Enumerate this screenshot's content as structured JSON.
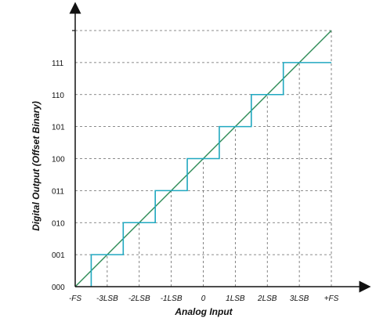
{
  "chart_data": {
    "type": "line",
    "title": "",
    "xlabel": "Analog Input",
    "ylabel": "Digital Output (Offset Binary)",
    "x_ticks": [
      "-FS",
      "-3LSB",
      "-2LSB",
      "-1LSB",
      "0",
      "1LSB",
      "2LSB",
      "3LSB",
      "+FS"
    ],
    "y_ticks": [
      "000",
      "001",
      "010",
      "011",
      "100",
      "101",
      "110",
      "111"
    ],
    "xlim": [
      -4,
      4
    ],
    "ylim": [
      0,
      8
    ],
    "grid": "dashed",
    "colors": {
      "ideal": "#2e8b57",
      "staircase": "#20a8c0",
      "axis": "#111111",
      "grid": "#666666"
    },
    "series": [
      {
        "type": "line",
        "x": [
          -4,
          4
        ],
        "y": [
          0,
          8
        ]
      },
      {
        "type": "step",
        "x": [
          -3.5,
          -3.5,
          -2.5,
          -2.5,
          -1.5,
          -1.5,
          -0.5,
          -0.5,
          0.5,
          0.5,
          1.5,
          1.5,
          2.5,
          2.5,
          4
        ],
        "y": [
          0,
          1,
          1,
          2,
          2,
          3,
          3,
          4,
          4,
          5,
          5,
          6,
          6,
          7,
          7
        ]
      }
    ]
  }
}
